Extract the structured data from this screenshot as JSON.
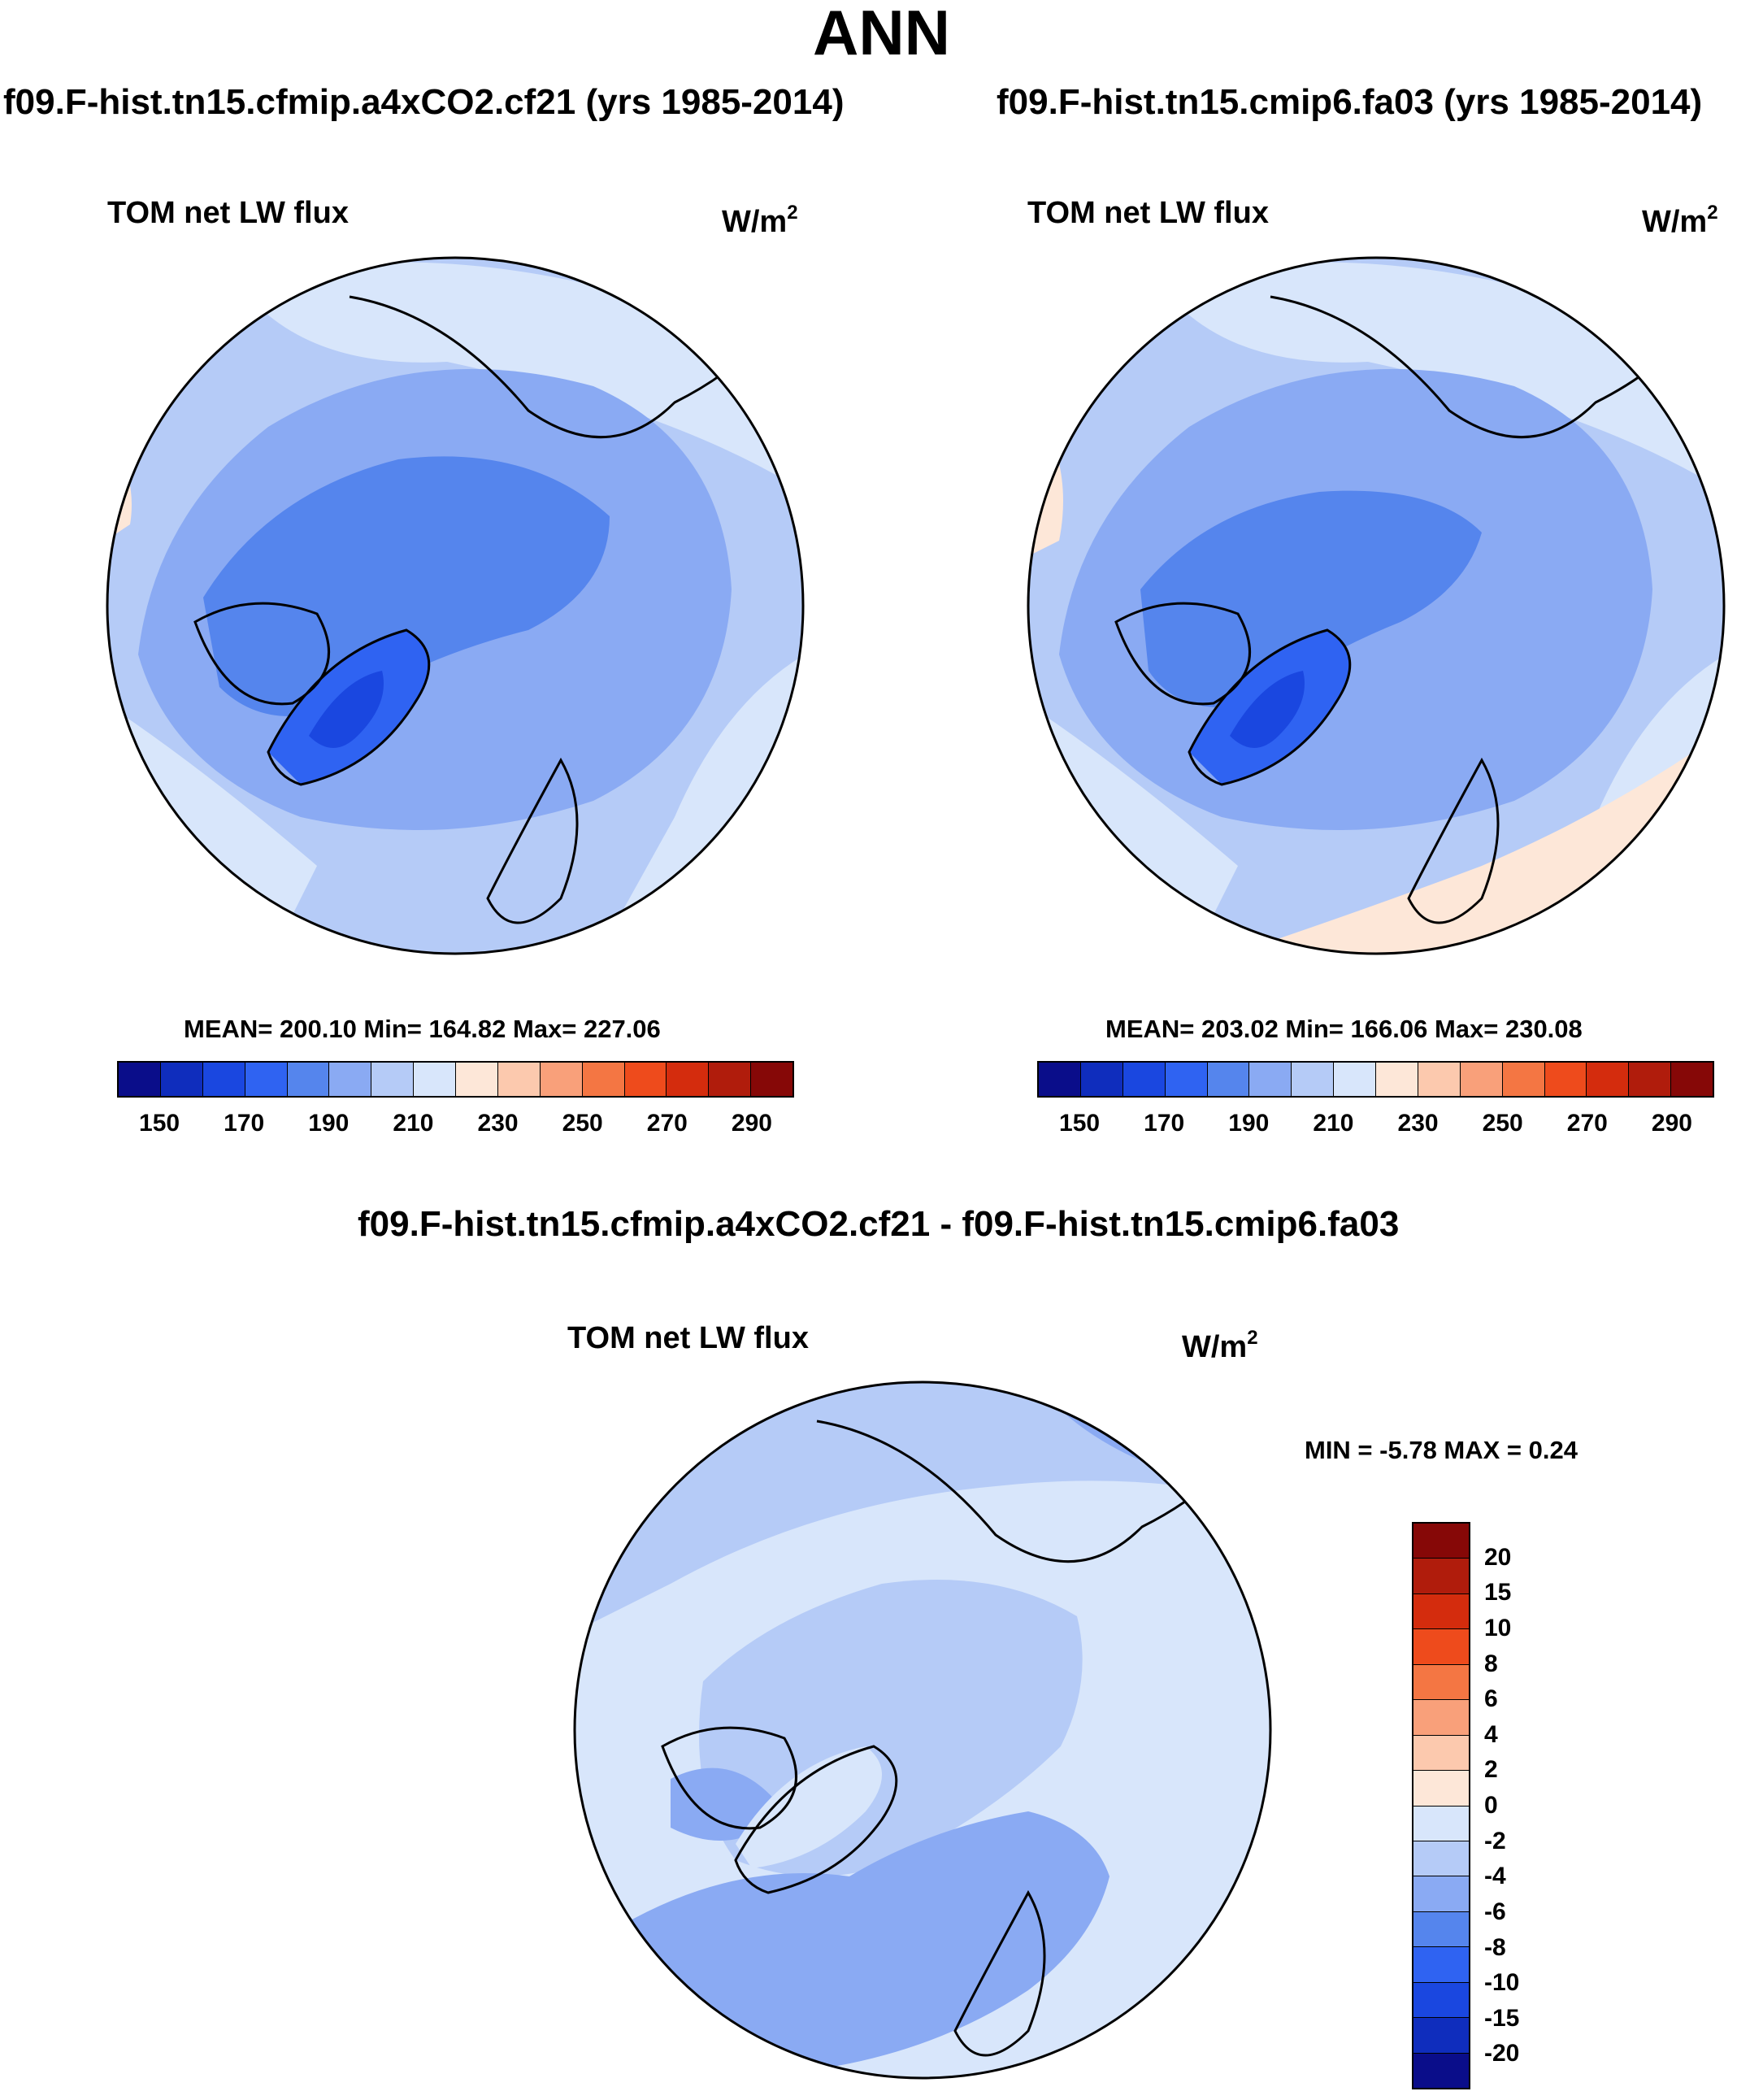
{
  "title": "ANN",
  "case_a": {
    "title": "f09.F-hist.tn15.cfmip.a4xCO2.cf21 (yrs 1985-2014)",
    "variable": "TOM net LW flux",
    "units": "W/m",
    "units_exp": "2",
    "stats": "MEAN= 200.10  Min= 164.82  Max= 227.06"
  },
  "case_b": {
    "title": "f09.F-hist.tn15.cmip6.fa03 (yrs 1985-2014)",
    "variable": "TOM net LW flux",
    "units": "W/m",
    "units_exp": "2",
    "stats": "MEAN= 203.02  Min= 166.06  Max= 230.08"
  },
  "diff": {
    "title": "f09.F-hist.tn15.cfmip.a4xCO2.cf21 - f09.F-hist.tn15.cmip6.fa03",
    "variable": "TOM net LW flux",
    "units": "W/m",
    "units_exp": "2",
    "minmax": "MIN =  -5.78 MAX =   0.24"
  },
  "colorbar_abs": {
    "colors": [
      "#0a0d8a",
      "#0f2dbd",
      "#1a47e0",
      "#2f63f2",
      "#5585ed",
      "#8aaaf3",
      "#b5cbf7",
      "#d8e6fb",
      "#fde7d8",
      "#fcc9ae",
      "#f9a07a",
      "#f47643",
      "#ee4b1c",
      "#d42c0d",
      "#b01c0c",
      "#860807"
    ],
    "ticks": [
      "150",
      "170",
      "190",
      "210",
      "230",
      "250",
      "270",
      "290"
    ],
    "tick_values": [
      150,
      170,
      190,
      210,
      230,
      250,
      270,
      290
    ],
    "range": [
      140,
      300
    ]
  },
  "colorbar_diff": {
    "colors_top_to_bottom": [
      "#860807",
      "#b01c0c",
      "#d42c0d",
      "#ee4b1c",
      "#f47643",
      "#f9a07a",
      "#fcc9ae",
      "#fde7d8",
      "#d8e6fb",
      "#b5cbf7",
      "#8aaaf3",
      "#5585ed",
      "#2f63f2",
      "#1a47e0",
      "#0f2dbd",
      "#0a0d8a"
    ],
    "ticks_top_to_bottom": [
      "20",
      "15",
      "10",
      "8",
      "6",
      "4",
      "2",
      "0",
      "-2",
      "-4",
      "-6",
      "-8",
      "-10",
      "-15",
      "-20"
    ]
  }
}
